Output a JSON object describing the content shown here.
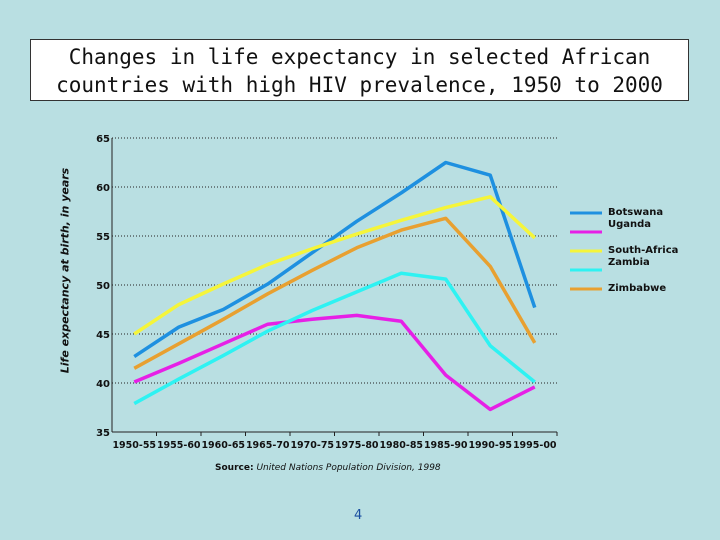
{
  "chart_data": {
    "type": "line",
    "title": "Changes in life expectancy in selected African countries with high HIV prevalence, 1950 to 2000",
    "xlabel": "",
    "ylabel": "Life expectancy at birth, in years",
    "ylim": [
      35,
      65
    ],
    "yticks": [
      35,
      40,
      45,
      50,
      55,
      60,
      65
    ],
    "grid": true,
    "legend_position": "right",
    "categories": [
      "1950-55",
      "1955-60",
      "1960-65",
      "1965-70",
      "1970-75",
      "1975-80",
      "1980-85",
      "1985-90",
      "1990-95",
      "1995-00"
    ],
    "series": [
      {
        "name": "Botswana",
        "color": "#1e90e0",
        "values": [
          42.7,
          45.7,
          47.5,
          50.1,
          53.3,
          56.5,
          59.4,
          62.5,
          61.2,
          47.7
        ]
      },
      {
        "name": "Uganda",
        "color": "#e620e6",
        "values": [
          40.1,
          42.0,
          44.0,
          46.0,
          46.5,
          46.9,
          46.3,
          40.8,
          37.3,
          39.6
        ]
      },
      {
        "name": "South-Africa",
        "color": "#f5f53a",
        "values": [
          45.0,
          48.0,
          50.1,
          52.1,
          53.7,
          55.2,
          56.6,
          57.9,
          59.0,
          54.8
        ]
      },
      {
        "name": "Zambia",
        "color": "#2ef2f2",
        "values": [
          37.9,
          40.4,
          42.8,
          45.3,
          47.4,
          49.3,
          51.2,
          50.6,
          43.8,
          40.1
        ]
      },
      {
        "name": "Zimbabwe",
        "color": "#e8a030",
        "values": [
          41.5,
          44.0,
          46.5,
          49.1,
          51.5,
          53.8,
          55.6,
          56.8,
          51.9,
          44.1
        ]
      }
    ],
    "source_label": "Source:",
    "source_text": "United Nations Population Division, 1998"
  },
  "page_number": "4"
}
